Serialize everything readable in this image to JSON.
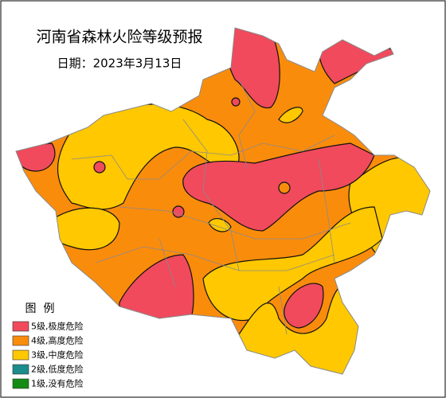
{
  "header": {
    "title": "河南省森林火险等级预报",
    "date": "日期：2023年3月13日"
  },
  "legend": {
    "title": "图  例",
    "items": [
      {
        "label": "5级,极度危险",
        "color": "#f04a5c"
      },
      {
        "label": "4级,高度危险",
        "color": "#fa8c0c"
      },
      {
        "label": "3级,中度危险",
        "color": "#ffc800"
      },
      {
        "label": "2级,低度危险",
        "color": "#1c8c8c"
      },
      {
        "label": "1级,没有危险",
        "color": "#138c13"
      }
    ]
  }
}
